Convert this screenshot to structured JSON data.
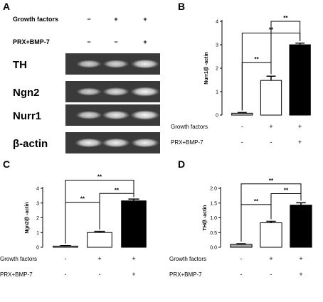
{
  "panel_a": {
    "letter": "A",
    "row_labels": [
      "Growth factors",
      "PRX+BMP-7"
    ],
    "row_signs": [
      [
        "−",
        "+",
        "+"
      ],
      [
        "−",
        "−",
        "+"
      ]
    ],
    "bands": [
      {
        "gene": "TH",
        "intensities": [
          0.55,
          0.62,
          0.85
        ]
      },
      {
        "gene": "Ngn2",
        "intensities": [
          0.55,
          0.7,
          0.95
        ]
      },
      {
        "gene": "Nurr1",
        "intensities": [
          0.65,
          0.8,
          0.95
        ]
      },
      {
        "gene": "β-actin",
        "intensities": [
          0.85,
          0.85,
          0.85
        ]
      }
    ]
  },
  "chart_data": [
    {
      "id": "B",
      "letter": "B",
      "type": "bar",
      "ylabel": "Nurr1/β -actin",
      "ylim": [
        0,
        4
      ],
      "yticks": [
        0,
        1,
        2,
        3,
        4
      ],
      "values": [
        0.08,
        1.48,
        3.0
      ],
      "errors": [
        0.03,
        0.18,
        0.07
      ],
      "colors": [
        "#d9d9d9",
        "#ffffff",
        "#000000"
      ],
      "significance": [
        {
          "from": 0,
          "to": 1,
          "label": "**",
          "y": 2.25
        },
        {
          "from": 0,
          "to": 2,
          "label": "**",
          "y": 3.5
        },
        {
          "from": 1,
          "to": 2,
          "label": "**",
          "y": 4.0
        }
      ],
      "row_labels": [
        "Growth factors",
        "PRX+BMP-7"
      ],
      "row_signs": [
        [
          "-",
          "+",
          "+"
        ],
        [
          "-",
          "-",
          "+"
        ]
      ]
    },
    {
      "id": "C",
      "letter": "C",
      "type": "bar",
      "ylabel": "Ngn2/β -actin",
      "ylim": [
        0,
        4
      ],
      "yticks": [
        0,
        1,
        2,
        3,
        4
      ],
      "values": [
        0.08,
        1.0,
        3.15
      ],
      "errors": [
        0.03,
        0.08,
        0.12
      ],
      "colors": [
        "#d9d9d9",
        "#ffffff",
        "#000000"
      ],
      "significance": [
        {
          "from": 0,
          "to": 1,
          "label": "**",
          "y": 3.05
        },
        {
          "from": 0,
          "to": 2,
          "label": "**",
          "y": 4.55
        },
        {
          "from": 1,
          "to": 2,
          "label": "**",
          "y": 3.65
        }
      ],
      "row_labels": [
        "Growth factors",
        "PRX+BMP-7"
      ],
      "row_signs": [
        [
          "-",
          "+",
          "+"
        ],
        [
          "-",
          "-",
          "+"
        ]
      ]
    },
    {
      "id": "D",
      "letter": "D",
      "type": "bar",
      "ylabel": "TH/β -actin",
      "ylim": [
        0,
        2.0
      ],
      "yticks": [
        0.0,
        0.5,
        1.0,
        1.5,
        2.0
      ],
      "ytick_labels": [
        "0.0",
        "0.5",
        "1.0",
        "1.5",
        "2.0"
      ],
      "values": [
        0.1,
        0.83,
        1.43
      ],
      "errors": [
        0.02,
        0.05,
        0.08
      ],
      "colors": [
        "#a6a6a6",
        "#ffffff",
        "#000000"
      ],
      "significance": [
        {
          "from": 0,
          "to": 1,
          "label": "**",
          "y": 1.45
        },
        {
          "from": 0,
          "to": 2,
          "label": "**",
          "y": 2.15
        },
        {
          "from": 1,
          "to": 2,
          "label": "**",
          "y": 1.82
        }
      ],
      "row_labels": [
        "Growth factors",
        "PRX+BMP-7"
      ],
      "row_signs": [
        [
          "-",
          "+",
          "+"
        ],
        [
          "-",
          "-",
          "+"
        ]
      ]
    }
  ]
}
